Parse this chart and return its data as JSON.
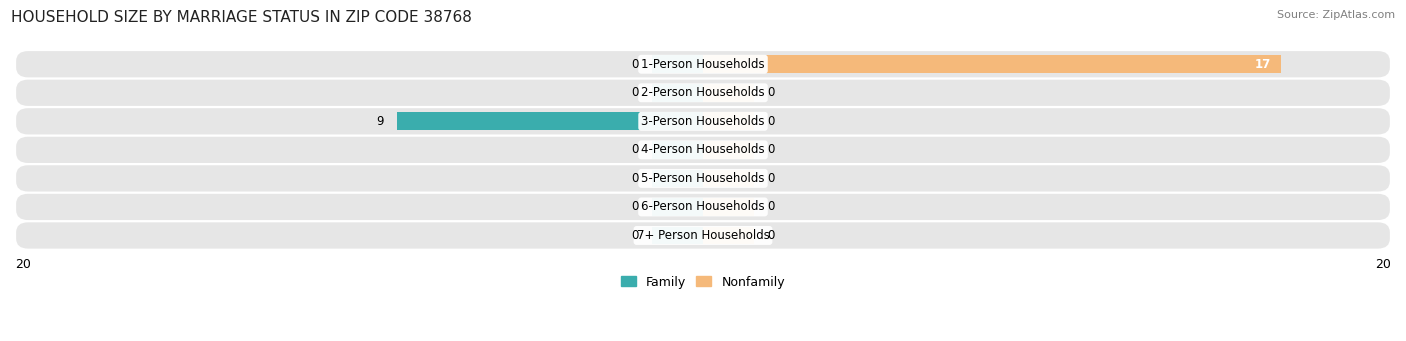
{
  "title": "HOUSEHOLD SIZE BY MARRIAGE STATUS IN ZIP CODE 38768",
  "source": "Source: ZipAtlas.com",
  "categories": [
    "1-Person Households",
    "2-Person Households",
    "3-Person Households",
    "4-Person Households",
    "5-Person Households",
    "6-Person Households",
    "7+ Person Households"
  ],
  "family_values": [
    0,
    0,
    9,
    0,
    0,
    0,
    0
  ],
  "nonfamily_values": [
    17,
    0,
    0,
    0,
    0,
    0,
    0
  ],
  "family_color": "#3aadad",
  "nonfamily_color": "#f5b97a",
  "row_bg_color": "#e6e6e6",
  "xlim": 20,
  "bar_height": 0.62,
  "stub_size": 1.5,
  "title_fontsize": 11,
  "label_fontsize": 8.5,
  "tick_fontsize": 9,
  "legend_fontsize": 9,
  "source_fontsize": 8
}
